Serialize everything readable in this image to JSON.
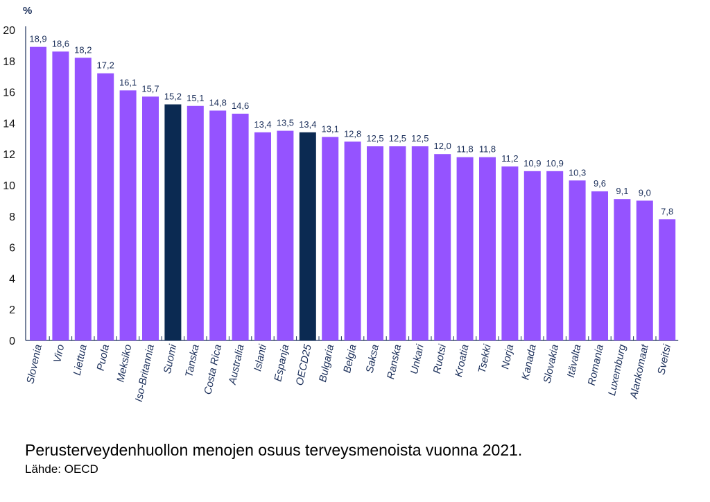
{
  "chart_data": {
    "type": "bar",
    "ylabel": "%",
    "ylim": [
      0,
      20
    ],
    "yticks": [
      0,
      2,
      4,
      6,
      8,
      10,
      12,
      14,
      16,
      18,
      20
    ],
    "grid": false,
    "categories": [
      "Slovenia",
      "Viro",
      "Liettua",
      "Puola",
      "Meksiko",
      "Iso-Britannia",
      "Suomi",
      "Tanska",
      "Costa Rica",
      "Australia",
      "Islanti",
      "Espanja",
      "OECD25",
      "Bulgaria",
      "Belgia",
      "Saksa",
      "Ranska",
      "Unkari",
      "Ruotsi",
      "Kroatia",
      "Tsekki",
      "Norja",
      "Kanada",
      "Slovakia",
      "Itävalta",
      "Romania",
      "Luxemburg",
      "Alankomaat",
      "Sveitsi"
    ],
    "values": [
      18.9,
      18.6,
      18.2,
      17.2,
      16.1,
      15.7,
      15.2,
      15.1,
      14.8,
      14.6,
      13.4,
      13.5,
      13.4,
      13.1,
      12.8,
      12.5,
      12.5,
      12.5,
      12.0,
      11.8,
      11.8,
      11.2,
      10.9,
      10.9,
      10.3,
      9.6,
      9.1,
      9.0,
      7.8
    ],
    "data_labels": [
      "18,9",
      "18,6",
      "18,2",
      "17,2",
      "16,1",
      "15,7",
      "15,2",
      "15,1",
      "14,8",
      "14,6",
      "13,4",
      "13,5",
      "13,4",
      "13,1",
      "12,8",
      "12,5",
      "12,5",
      "12,5",
      "12,0",
      "11,8",
      "11,8",
      "11,2",
      "10,9",
      "10,9",
      "10,3",
      "9,6",
      "9,1",
      "9,0",
      "7,8"
    ],
    "highlighted": [
      "Suomi",
      "OECD25"
    ],
    "colors": {
      "bar": "#9553ff",
      "highlight": "#0b2a52",
      "text": "#1b2f5a",
      "axis": "#1b2f5a"
    }
  },
  "caption": "Perusterveydenhuollon menojen osuus terveysmenoista vuonna 2021.",
  "source": "Lähde: OECD"
}
